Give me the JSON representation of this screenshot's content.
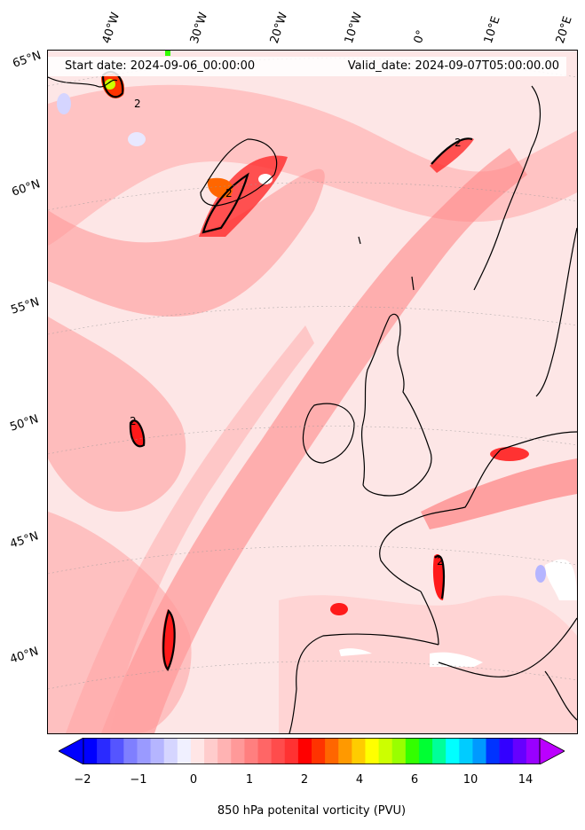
{
  "header": {
    "start_date": "Start date: 2024-09-06_00:00:00",
    "valid_date": "Valid_date: 2024-09-07T05:00:00.00"
  },
  "longitude_labels": [
    "40°W",
    "30°W",
    "20°W",
    "10°W",
    "0°",
    "10°E",
    "20°E"
  ],
  "latitude_labels": [
    "65°N",
    "60°N",
    "55°N",
    "50°N",
    "45°N",
    "40°N"
  ],
  "colorbar": {
    "title": "850 hPa potenital vorticity (PVU)",
    "tick_labels": [
      "−2",
      "−1",
      "0",
      "1",
      "2",
      "4",
      "6",
      "10",
      "14"
    ],
    "colors": [
      "#0000ff",
      "#2a2aff",
      "#5555ff",
      "#7f7fff",
      "#9a9aff",
      "#b5b5ff",
      "#d5d5ff",
      "#f0f0ff",
      "#ffe6e6",
      "#ffcccc",
      "#ffb3b3",
      "#ff9999",
      "#ff7f7f",
      "#ff6666",
      "#ff4c4c",
      "#ff3232",
      "#ff0000",
      "#ff3300",
      "#ff6600",
      "#ff9900",
      "#ffcc00",
      "#ffff00",
      "#ccff00",
      "#99ff00",
      "#33ff00",
      "#00ff33",
      "#00ff99",
      "#00ffff",
      "#00ccff",
      "#0099ff",
      "#0033ff",
      "#3300ff",
      "#6600ff",
      "#9900ff"
    ],
    "under_color": "#0000ff",
    "over_color": "#bb00ff"
  },
  "map": {
    "background_color": "#fde6e6",
    "coastline_color": "#000000",
    "contour_label": "2"
  }
}
